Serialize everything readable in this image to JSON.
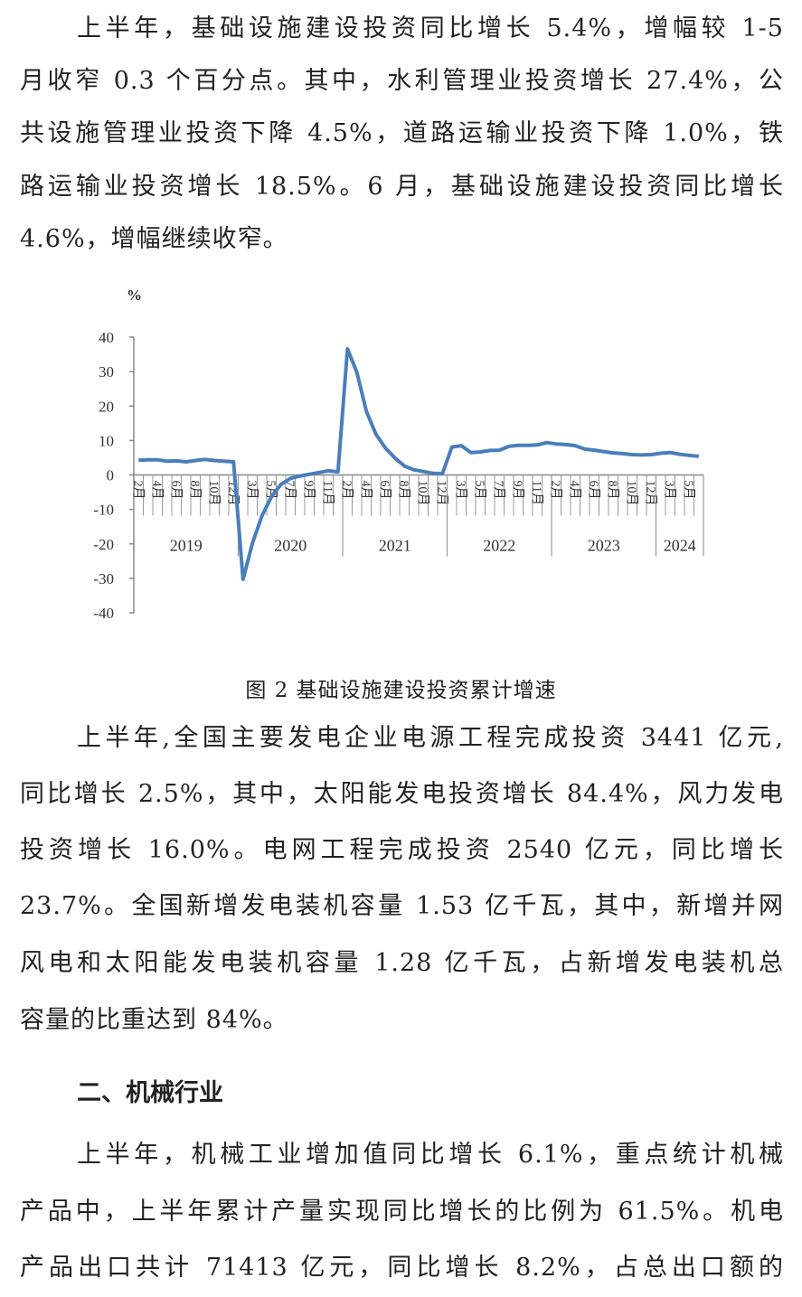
{
  "paragraphs": [
    {
      "lines": [
        "上半年，基础设施建设投资同比增长 5.4%，增幅较 1-5",
        "月收窄 0.3 个百分点。其中，水利管理业投资增长 27.4%，公",
        "共设施管理业投资下降 4.5%，道路运输业投资下降 1.0%，铁",
        "路运输业投资增长 18.5%。6 月，基础设施建设投资同比增长",
        "4.6%，增幅继续收窄。"
      ]
    },
    {
      "lines": [
        "上半年,全国主要发电企业电源工程完成投资 3441 亿元,",
        "同比增长 2.5%，其中，太阳能发电投资增长 84.4%，风力发电",
        "投资增长 16.0%。电网工程完成投资 2540 亿元，同比增长",
        "23.7%。全国新增发电装机容量 1.53 亿千瓦，其中，新增并网",
        "风电和太阳能发电装机容量 1.28 亿千瓦，占新增发电装机总",
        "容量的比重达到 84%。"
      ]
    },
    {
      "lines": [
        "上半年，机械工业增加值同比增长 6.1%，重点统计机械",
        "产品中，上半年累计产量实现同比增长的比例为 61.5%。机电",
        "产品出口共计 71413 亿元，同比增长 8.2%，占总出口额的"
      ]
    }
  ],
  "heading": "二、机械行业",
  "figure_caption": "图 2 基础设施建设投资累计增速",
  "chart_data": {
    "type": "line",
    "ylabel": "%",
    "ylim": [
      -40,
      40
    ],
    "yticks": [
      40,
      30,
      20,
      10,
      0,
      -10,
      -20,
      -30,
      -40
    ],
    "grid": false,
    "line_color": "#4a7ebb",
    "years": [
      {
        "label": "2019",
        "months": [
          2,
          3,
          4,
          5,
          6,
          7,
          8,
          9,
          10,
          11,
          12
        ],
        "month_labels": [
          "2月",
          "",
          "4月",
          "",
          "6月",
          "",
          "8月",
          "",
          "10月",
          "",
          "12月"
        ],
        "values": [
          4.3,
          4.4,
          4.4,
          4.0,
          4.1,
          3.8,
          4.2,
          4.5,
          4.2,
          4.0,
          3.8
        ]
      },
      {
        "label": "2020",
        "months": [
          2,
          3,
          4,
          5,
          6,
          7,
          8,
          9,
          10,
          11,
          12
        ],
        "month_labels": [
          "",
          "3月",
          "",
          "5月",
          "",
          "7月",
          "",
          "9月",
          "",
          "11月",
          ""
        ],
        "values": [
          -30.3,
          -19.7,
          -11.8,
          -6.3,
          -2.7,
          -1.0,
          -0.3,
          0.2,
          0.7,
          1.2,
          0.9
        ]
      },
      {
        "label": "2021",
        "months": [
          2,
          3,
          4,
          5,
          6,
          7,
          8,
          9,
          10,
          11,
          12
        ],
        "month_labels": [
          "2月",
          "",
          "4月",
          "",
          "6月",
          "",
          "8月",
          "",
          "10月",
          "",
          "12月"
        ],
        "values": [
          36.6,
          29.7,
          18.4,
          11.8,
          7.8,
          4.9,
          2.6,
          1.5,
          1.0,
          0.5,
          0.4
        ]
      },
      {
        "label": "2022",
        "months": [
          2,
          3,
          4,
          5,
          6,
          7,
          8,
          9,
          10,
          11,
          12
        ],
        "month_labels": [
          "",
          "3月",
          "",
          "5月",
          "",
          "7月",
          "",
          "9月",
          "",
          "11月",
          ""
        ],
        "values": [
          8.1,
          8.5,
          6.5,
          6.7,
          7.1,
          7.2,
          8.3,
          8.6,
          8.6,
          8.7,
          9.4
        ]
      },
      {
        "label": "2023",
        "months": [
          2,
          3,
          4,
          5,
          6,
          7,
          8,
          9,
          10,
          11,
          12
        ],
        "month_labels": [
          "2月",
          "",
          "4月",
          "",
          "6月",
          "",
          "8月",
          "",
          "10月",
          "",
          "12月"
        ],
        "values": [
          9.0,
          8.8,
          8.5,
          7.5,
          7.2,
          6.8,
          6.4,
          6.2,
          5.9,
          5.8,
          5.9
        ]
      },
      {
        "label": "2024",
        "months": [
          2,
          3,
          4,
          5,
          6
        ],
        "month_labels": [
          "",
          "3月",
          "",
          "5月",
          ""
        ],
        "values": [
          6.3,
          6.5,
          6.0,
          5.7,
          5.4
        ]
      }
    ]
  }
}
